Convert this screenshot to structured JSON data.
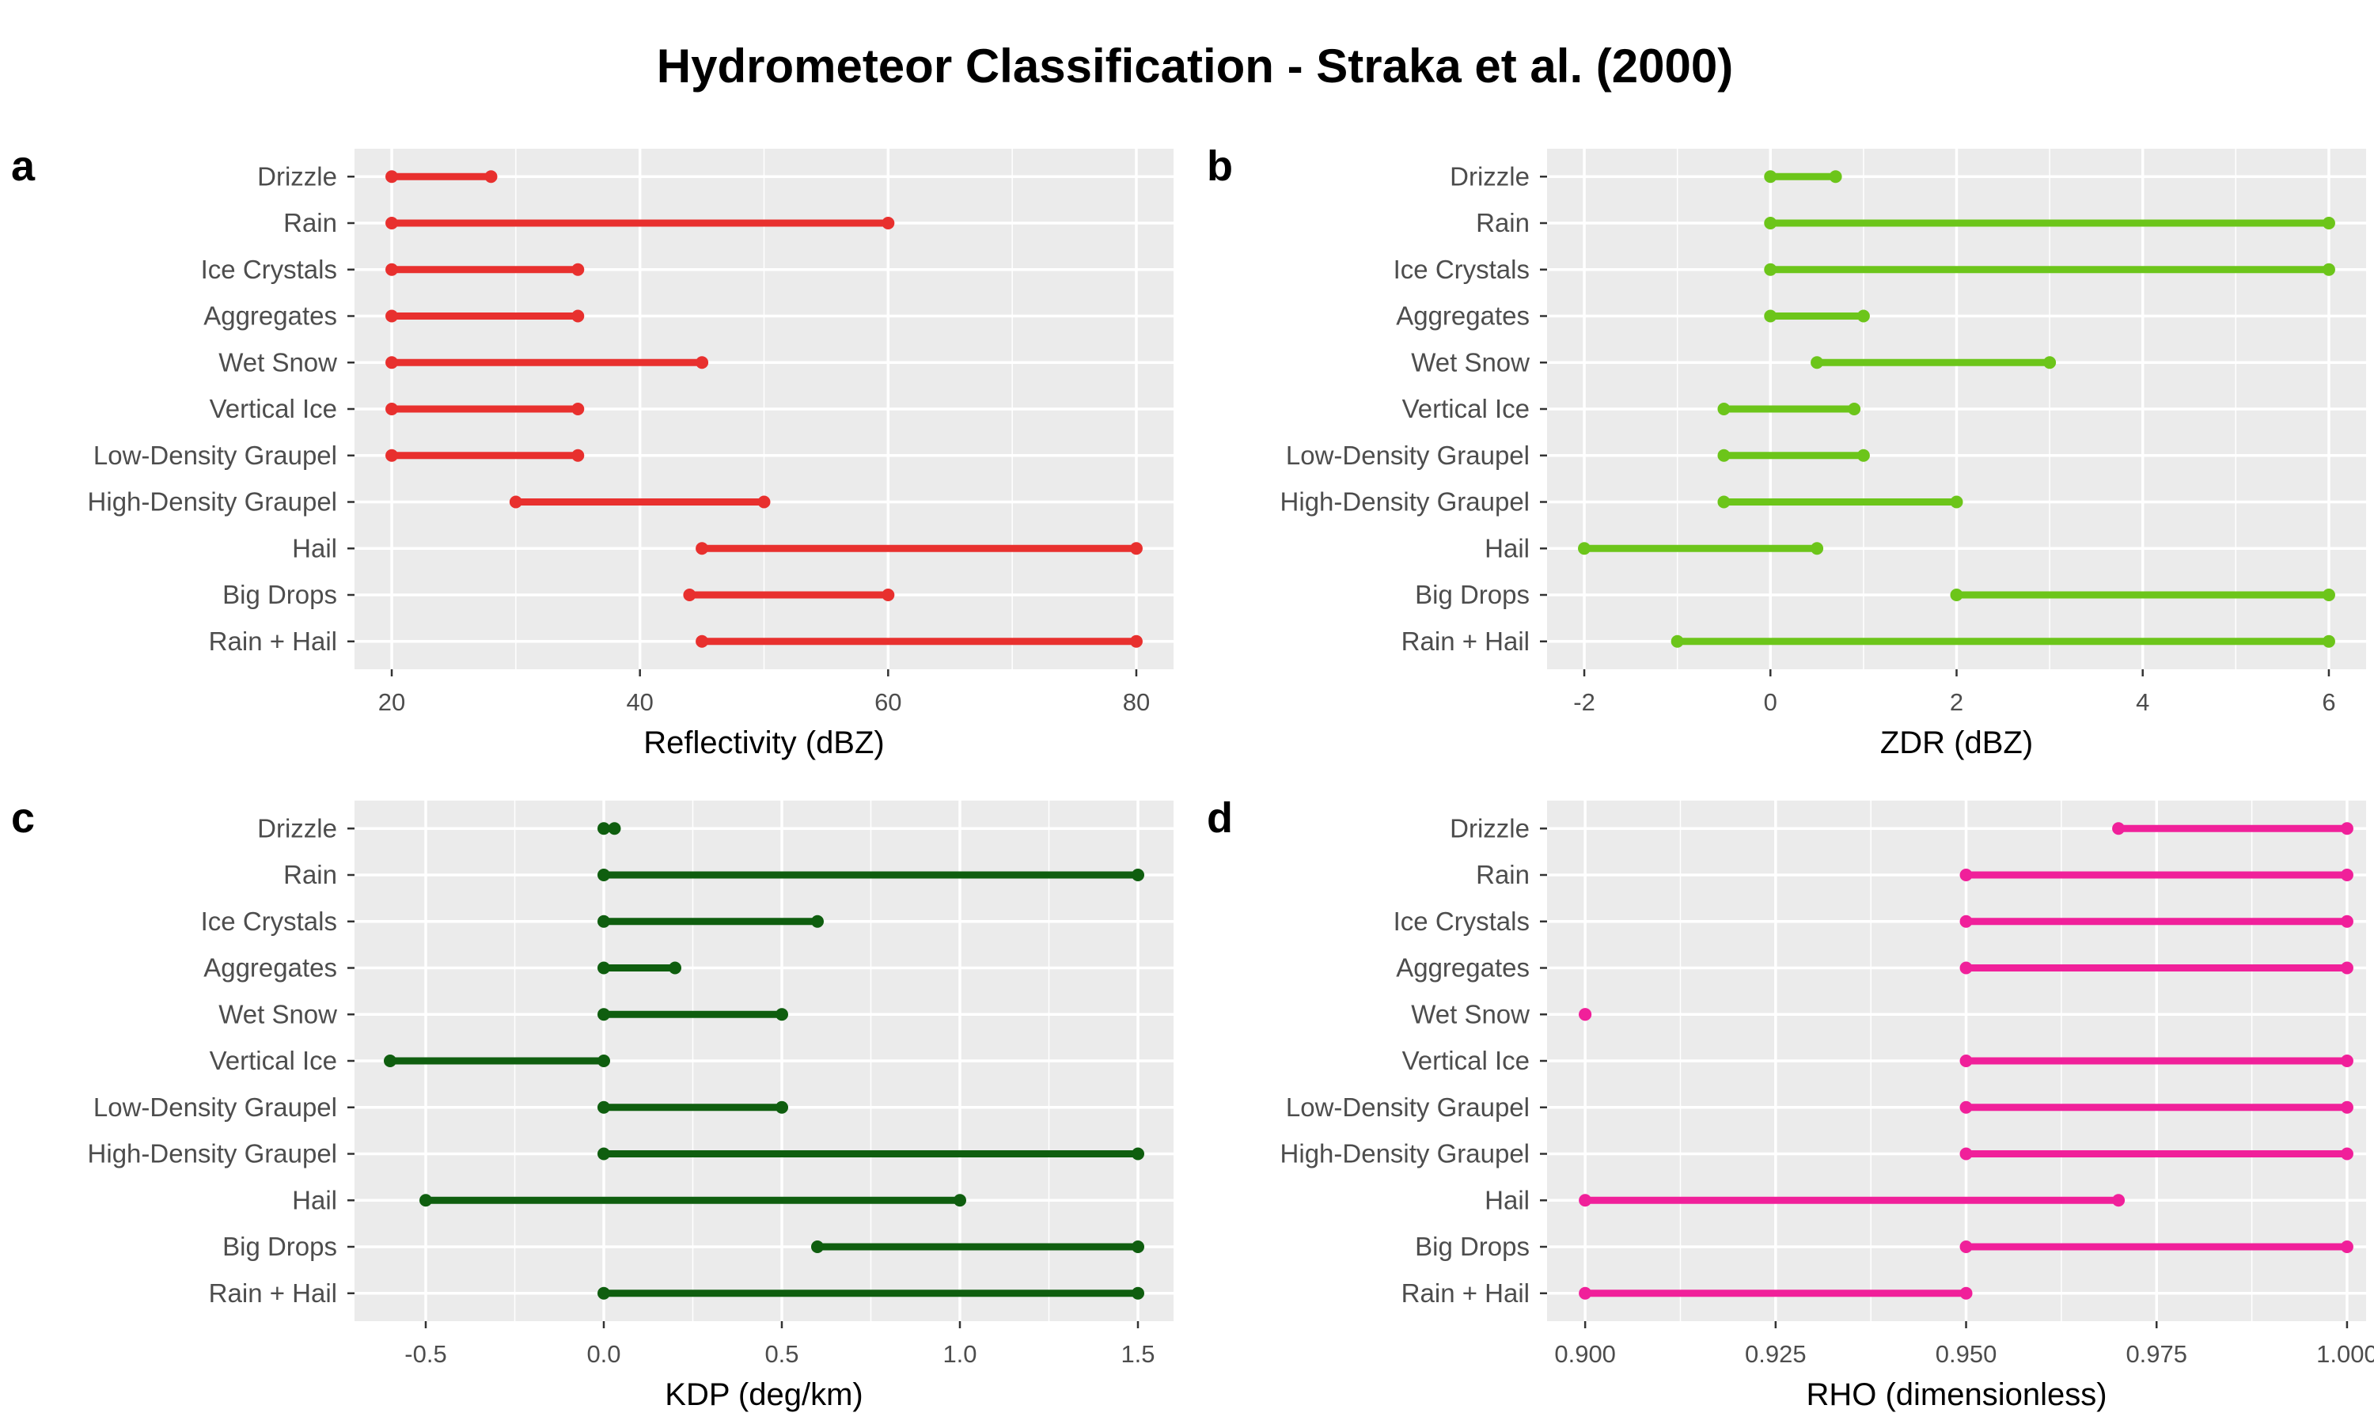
{
  "title": "Hydrometeor Classification - Straka et al. (2000)",
  "chart_data": [
    {
      "type": "dumbbell",
      "panel": "a",
      "xlabel": "Reflectivity (dBZ)",
      "color": "#e8302e",
      "xlim": [
        17,
        83
      ],
      "xticks": [
        20,
        40,
        60,
        80
      ],
      "xtick_labels": [
        "20",
        "40",
        "60",
        "80"
      ],
      "categories": [
        "Drizzle",
        "Rain",
        "Ice Crystals",
        "Aggregates",
        "Wet Snow",
        "Vertical Ice",
        "Low-Density Graupel",
        "High-Density Graupel",
        "Hail",
        "Big Drops",
        "Rain + Hail"
      ],
      "ranges": [
        [
          20,
          28
        ],
        [
          20,
          60
        ],
        [
          20,
          35
        ],
        [
          20,
          35
        ],
        [
          20,
          45
        ],
        [
          20,
          35
        ],
        [
          20,
          35
        ],
        [
          30,
          50
        ],
        [
          45,
          80
        ],
        [
          44,
          60
        ],
        [
          45,
          80
        ]
      ]
    },
    {
      "type": "dumbbell",
      "panel": "b",
      "xlabel": "ZDR (dBZ)",
      "color": "#6cc51a",
      "xlim": [
        -2.4,
        6.4
      ],
      "xticks": [
        -2,
        0,
        2,
        4,
        6
      ],
      "xtick_labels": [
        "-2",
        "0",
        "2",
        "4",
        "6"
      ],
      "categories": [
        "Drizzle",
        "Rain",
        "Ice Crystals",
        "Aggregates",
        "Wet Snow",
        "Vertical Ice",
        "Low-Density Graupel",
        "High-Density Graupel",
        "Hail",
        "Big Drops",
        "Rain + Hail"
      ],
      "ranges": [
        [
          0,
          0.7
        ],
        [
          0,
          6
        ],
        [
          0,
          6
        ],
        [
          0,
          1
        ],
        [
          0.5,
          3
        ],
        [
          -0.5,
          0.9
        ],
        [
          -0.5,
          1
        ],
        [
          -0.5,
          2
        ],
        [
          -2,
          0.5
        ],
        [
          2,
          6
        ],
        [
          -1,
          6
        ]
      ]
    },
    {
      "type": "dumbbell",
      "panel": "c",
      "xlabel": "KDP (deg/km)",
      "color": "#0f5e0f",
      "xlim": [
        -0.7,
        1.6
      ],
      "xticks": [
        -0.5,
        0.0,
        0.5,
        1.0,
        1.5
      ],
      "xtick_labels": [
        "-0.5",
        "0.0",
        "0.5",
        "1.0",
        "1.5"
      ],
      "categories": [
        "Drizzle",
        "Rain",
        "Ice Crystals",
        "Aggregates",
        "Wet Snow",
        "Vertical Ice",
        "Low-Density Graupel",
        "High-Density Graupel",
        "Hail",
        "Big Drops",
        "Rain + Hail"
      ],
      "ranges": [
        [
          0,
          0.03
        ],
        [
          0,
          1.5
        ],
        [
          0,
          0.6
        ],
        [
          0,
          0.2
        ],
        [
          0,
          0.5
        ],
        [
          -0.6,
          0
        ],
        [
          0,
          0.5
        ],
        [
          0,
          1.5
        ],
        [
          -0.5,
          1.0
        ],
        [
          0.6,
          1.5
        ],
        [
          0,
          1.5
        ]
      ]
    },
    {
      "type": "dumbbell",
      "panel": "d",
      "xlabel": "RHO (dimensionless)",
      "color": "#f0209a",
      "xlim": [
        0.895,
        1.0025
      ],
      "xticks": [
        0.9,
        0.925,
        0.95,
        0.975,
        1.0
      ],
      "xtick_labels": [
        "0.900",
        "0.925",
        "0.950",
        "0.975",
        "1.000"
      ],
      "categories": [
        "Drizzle",
        "Rain",
        "Ice Crystals",
        "Aggregates",
        "Wet Snow",
        "Vertical Ice",
        "Low-Density Graupel",
        "High-Density Graupel",
        "Hail",
        "Big Drops",
        "Rain + Hail"
      ],
      "ranges": [
        [
          0.97,
          1.0
        ],
        [
          0.95,
          1.0
        ],
        [
          0.95,
          1.0
        ],
        [
          0.95,
          1.0
        ],
        [
          0.9,
          0.9
        ],
        [
          0.95,
          1.0
        ],
        [
          0.95,
          1.0
        ],
        [
          0.95,
          1.0
        ],
        [
          0.9,
          0.97
        ],
        [
          0.95,
          1.0
        ],
        [
          0.9,
          0.95
        ]
      ]
    }
  ]
}
